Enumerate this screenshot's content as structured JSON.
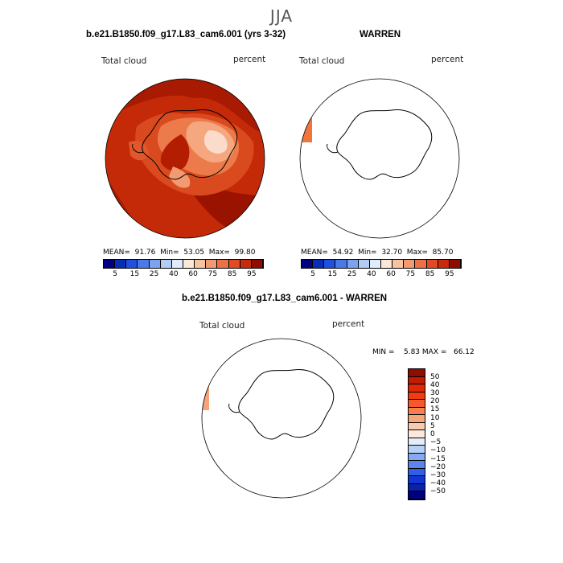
{
  "season": "JJA",
  "panels": [
    {
      "title": "b.e21.B1850.f09_g17.L83_cam6.001 (yrs 3-32)",
      "variable": "Total cloud",
      "units": "percent",
      "stats": "MEAN=  91.76  Min=  53.05  Max=  99.80"
    },
    {
      "title": "WARREN",
      "variable": "Total cloud",
      "units": "percent",
      "stats": "MEAN=  54.92  Min=  32.70  Max=  85.70"
    },
    {
      "title": "b.e21.B1850.f09_g17.L83_cam6.001 - WARREN",
      "variable": "Total cloud",
      "units": "percent",
      "stats": "MIN =    5.83 MAX =   66.12"
    }
  ],
  "colorbar_abs": {
    "labels": [
      "5",
      "15",
      "25",
      "40",
      "60",
      "75",
      "85",
      "95"
    ],
    "colors": [
      "#000080",
      "#0a2db8",
      "#2050e0",
      "#4a7ae8",
      "#7da3ee",
      "#b3ccf5",
      "#e0ecfb",
      "#fbe8d8",
      "#f7c3a0",
      "#f29a72",
      "#ec7048",
      "#e24a24",
      "#c82a0e",
      "#8f0c00"
    ]
  },
  "colorbar_diff": {
    "labels": [
      "50",
      "40",
      "30",
      "20",
      "15",
      "10",
      "5",
      "0",
      "−5",
      "−10",
      "−15",
      "−20",
      "−30",
      "−40",
      "−50"
    ],
    "colors": [
      "#8f0c00",
      "#c01c04",
      "#e02808",
      "#f23c10",
      "#f65a2a",
      "#f68050",
      "#f5a67c",
      "#f8cbb0",
      "#fde8dc",
      "#e4eefb",
      "#b6d0f6",
      "#86aaf0",
      "#5a85ec",
      "#2f5fe6",
      "#1035d2",
      "#0a20ae",
      "#000080"
    ]
  }
}
